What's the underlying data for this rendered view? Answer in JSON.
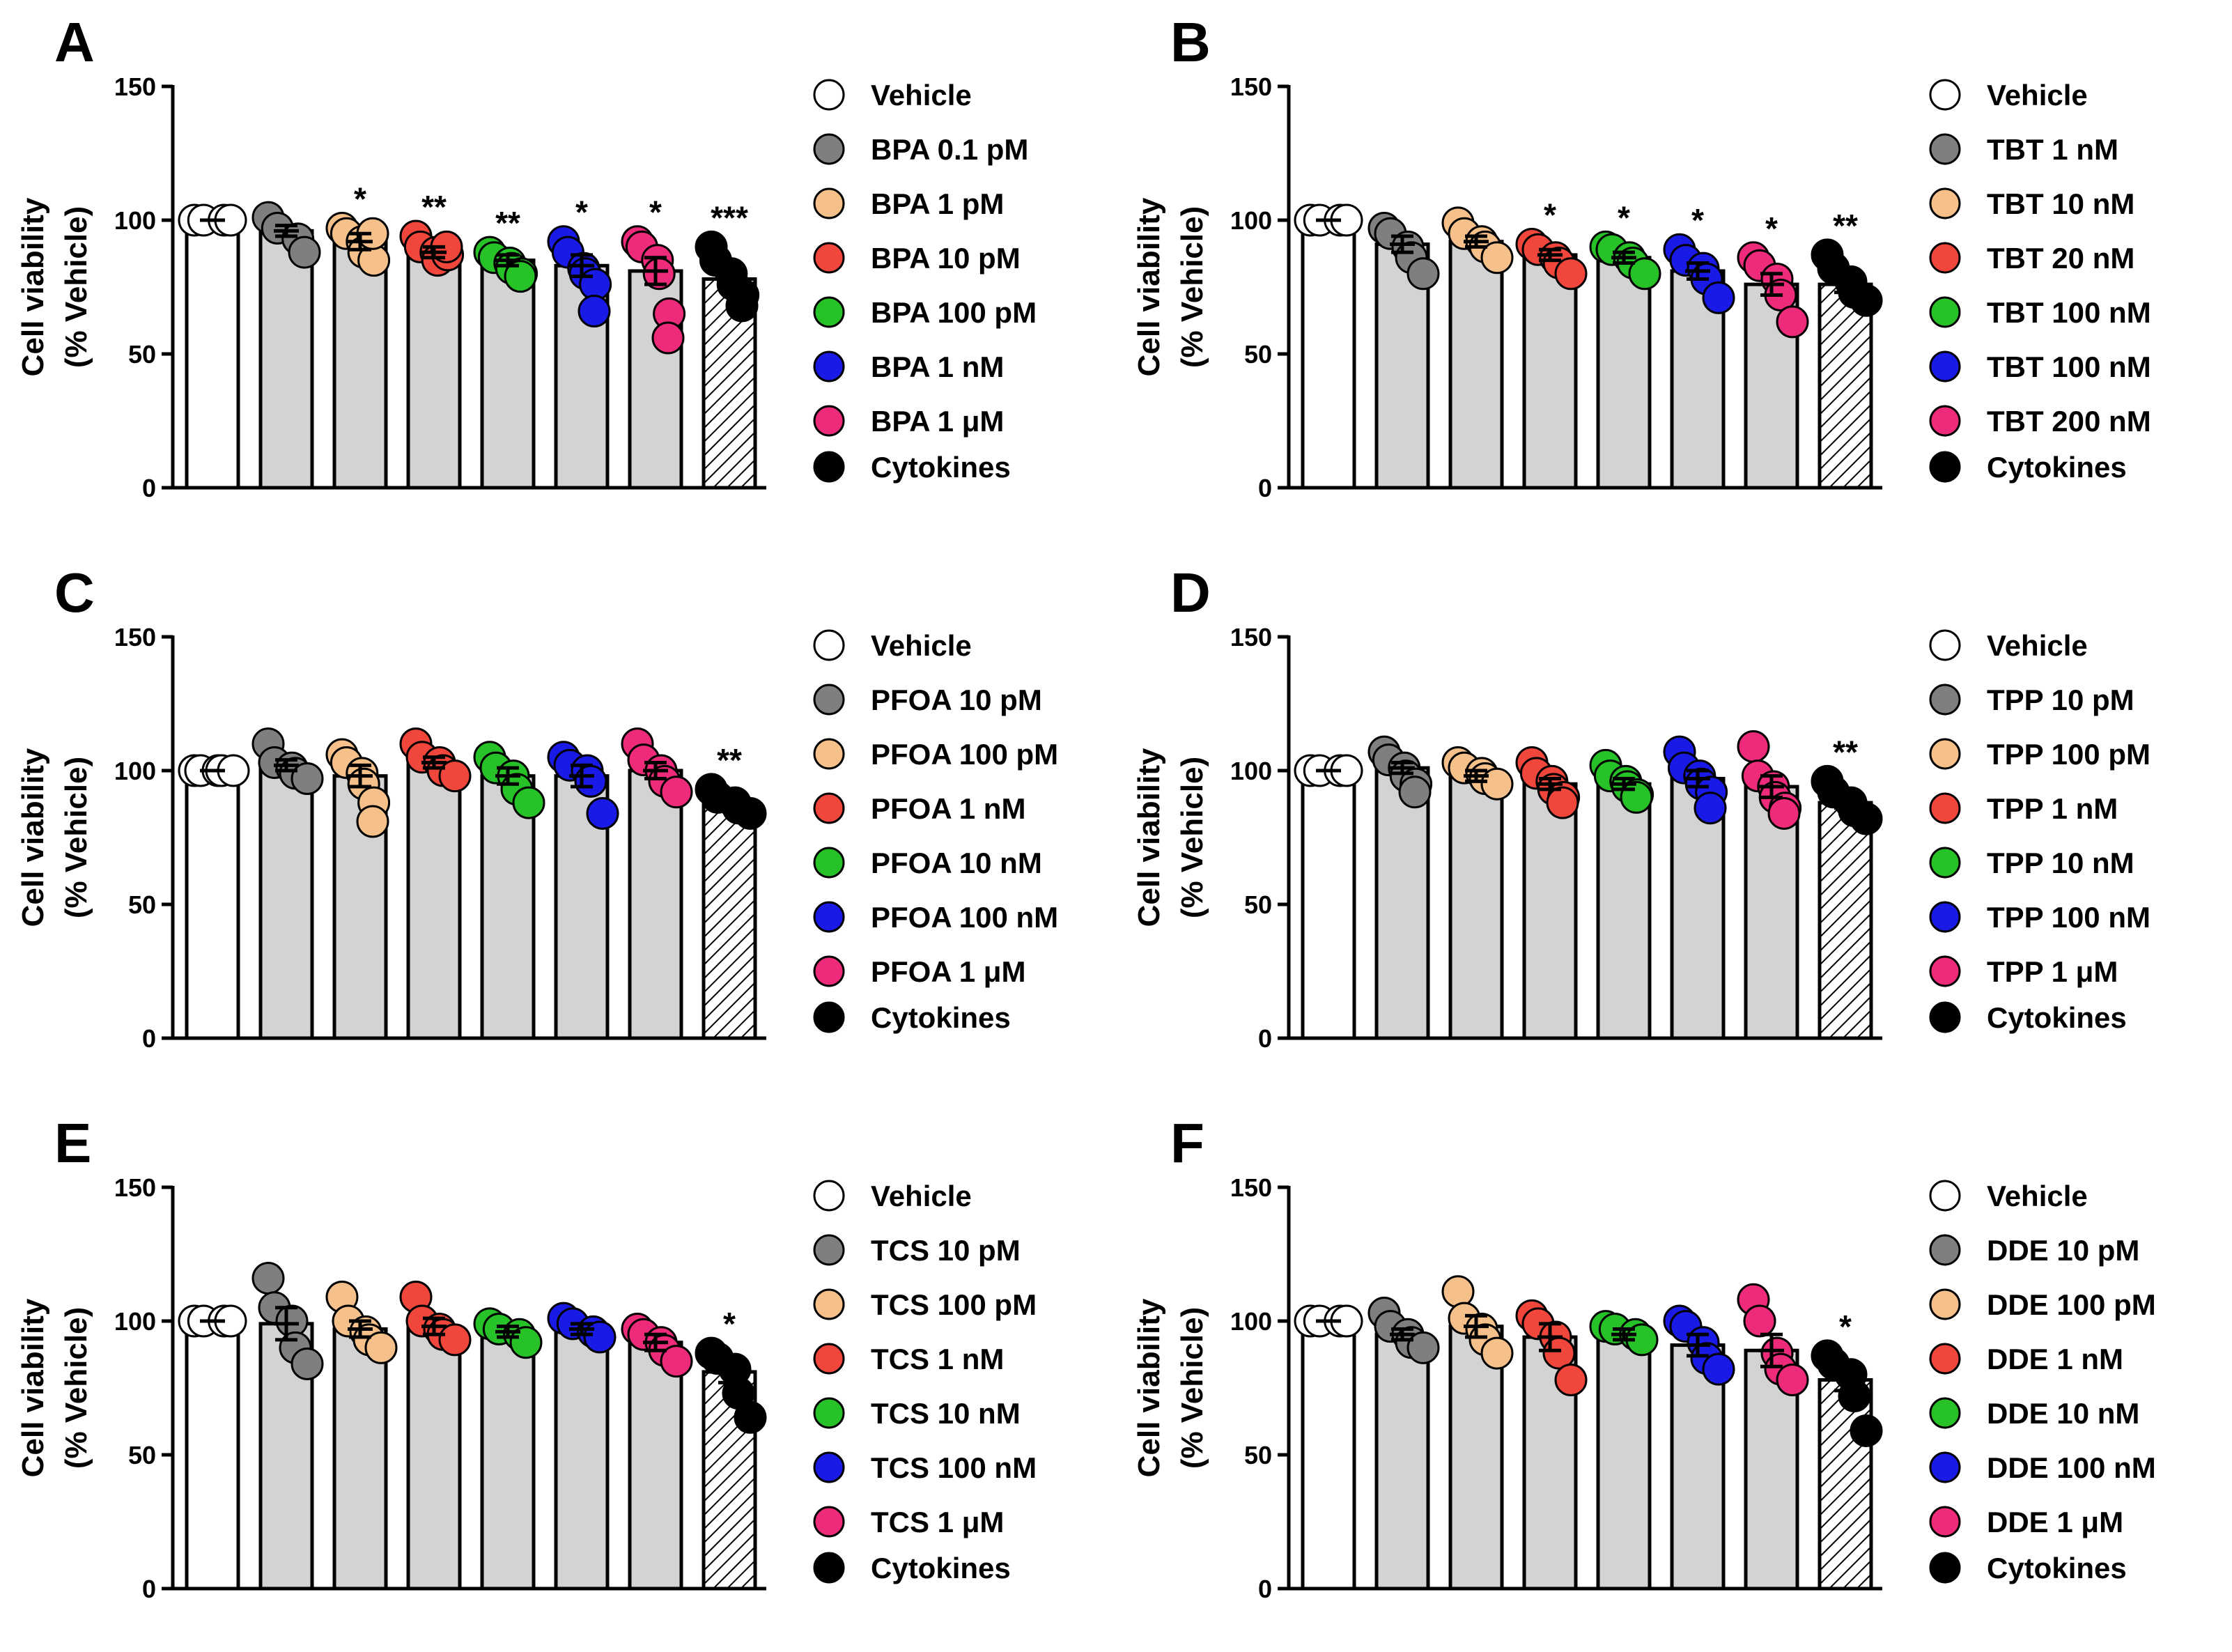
{
  "chart_data": [
    {
      "panel": "A",
      "type": "bar",
      "ylabel_line1": "Cell viability",
      "ylabel_line2": "(% Vehicle)",
      "ylim": [
        0,
        150
      ],
      "yticks": [
        "0",
        "50",
        "100",
        "150"
      ],
      "bars": [
        {
          "label": "Vehicle",
          "color": "#ffffff",
          "fill": "#ffffff",
          "hatched": false,
          "mean": 100,
          "sem": 0,
          "points": [
            100,
            100,
            100,
            100
          ],
          "sig": ""
        },
        {
          "label": "BPA 0.1 pM",
          "color": "#7f7f7f",
          "fill": "#d3d3d3",
          "hatched": false,
          "mean": 96,
          "sem": 2,
          "points": [
            101,
            97,
            93,
            88
          ],
          "sig": ""
        },
        {
          "label": "BPA 1 pM",
          "color": "#f5c08a",
          "fill": "#d3d3d3",
          "hatched": false,
          "mean": 92,
          "sem": 3,
          "points": [
            97,
            95,
            92,
            88,
            85,
            95
          ],
          "sig": "*"
        },
        {
          "label": "BPA 10 pM",
          "color": "#f0463c",
          "fill": "#d3d3d3",
          "hatched": false,
          "mean": 88,
          "sem": 2,
          "points": [
            94,
            90,
            88,
            85,
            87,
            90
          ],
          "sig": "**"
        },
        {
          "label": "BPA 100 pM",
          "color": "#27c227",
          "fill": "#d3d3d3",
          "hatched": false,
          "mean": 85,
          "sem": 2,
          "points": [
            88,
            86,
            84,
            82,
            80,
            79
          ],
          "sig": "**"
        },
        {
          "label": "BPA 1 nM",
          "color": "#1a1ae6",
          "fill": "#d3d3d3",
          "hatched": false,
          "mean": 83,
          "sem": 4,
          "points": [
            92,
            88,
            82,
            80,
            76,
            66
          ],
          "sig": "*"
        },
        {
          "label": "BPA 1 μM",
          "color": "#ee2a7b",
          "fill": "#d3d3d3",
          "hatched": false,
          "mean": 81,
          "sem": 5,
          "points": [
            92,
            90,
            85,
            80,
            65,
            56
          ],
          "sig": "*"
        },
        {
          "label": "Cytokines",
          "color": "#000000",
          "fill": "#ffffff",
          "hatched": true,
          "mean": 78,
          "sem": 2,
          "points": [
            90,
            85,
            80,
            76,
            72,
            68
          ],
          "sig": "***"
        }
      ]
    },
    {
      "panel": "B",
      "type": "bar",
      "ylabel_line1": "Cell viability",
      "ylabel_line2": "(% Vehicle)",
      "ylim": [
        0,
        150
      ],
      "yticks": [
        "0",
        "50",
        "100",
        "150"
      ],
      "bars": [
        {
          "label": "Vehicle",
          "color": "#ffffff",
          "fill": "#ffffff",
          "hatched": false,
          "mean": 100,
          "sem": 0,
          "points": [
            100,
            100,
            100,
            100
          ],
          "sig": ""
        },
        {
          "label": "TBT 1 nM",
          "color": "#7f7f7f",
          "fill": "#d3d3d3",
          "hatched": false,
          "mean": 91,
          "sem": 3,
          "points": [
            97,
            95,
            90,
            86,
            80
          ],
          "sig": ""
        },
        {
          "label": "TBT 10 nM",
          "color": "#f5c08a",
          "fill": "#d3d3d3",
          "hatched": false,
          "mean": 92,
          "sem": 2,
          "points": [
            99,
            95,
            92,
            90,
            86
          ],
          "sig": ""
        },
        {
          "label": "TBT 20 nM",
          "color": "#f0463c",
          "fill": "#d3d3d3",
          "hatched": false,
          "mean": 87,
          "sem": 2,
          "points": [
            91,
            89,
            86,
            84,
            80
          ],
          "sig": "*"
        },
        {
          "label": "TBT 100 nM",
          "color": "#27c227",
          "fill": "#d3d3d3",
          "hatched": false,
          "mean": 86,
          "sem": 2,
          "points": [
            90,
            89,
            86,
            84,
            80
          ],
          "sig": "*"
        },
        {
          "label": "TBT 100 nM",
          "color": "#1a1ae6",
          "fill": "#d3d3d3",
          "hatched": false,
          "mean": 81,
          "sem": 3,
          "points": [
            89,
            85,
            82,
            78,
            71
          ],
          "sig": "*"
        },
        {
          "label": "TBT 200 nM",
          "color": "#ee2a7b",
          "fill": "#d3d3d3",
          "hatched": false,
          "mean": 76,
          "sem": 4,
          "points": [
            86,
            83,
            78,
            72,
            62
          ],
          "sig": "*"
        },
        {
          "label": "Cytokines",
          "color": "#000000",
          "fill": "#ffffff",
          "hatched": true,
          "mean": 76,
          "sem": 3,
          "points": [
            87,
            82,
            77,
            73,
            70
          ],
          "sig": "**"
        }
      ]
    },
    {
      "panel": "C",
      "type": "bar",
      "ylabel_line1": "Cell viability",
      "ylabel_line2": "(% Vehicle)",
      "ylim": [
        0,
        150
      ],
      "yticks": [
        "0",
        "50",
        "100",
        "150"
      ],
      "bars": [
        {
          "label": "Vehicle",
          "color": "#ffffff",
          "fill": "#ffffff",
          "hatched": false,
          "mean": 100,
          "sem": 0,
          "points": [
            100,
            100,
            100,
            100,
            100
          ],
          "sig": ""
        },
        {
          "label": "PFOA 10 pM",
          "color": "#7f7f7f",
          "fill": "#d3d3d3",
          "hatched": false,
          "mean": 102,
          "sem": 2,
          "points": [
            110,
            103,
            101,
            99,
            97
          ],
          "sig": ""
        },
        {
          "label": "PFOA 100 pM",
          "color": "#f5c08a",
          "fill": "#d3d3d3",
          "hatched": false,
          "mean": 98,
          "sem": 4,
          "points": [
            106,
            103,
            99,
            95,
            88,
            81
          ],
          "sig": ""
        },
        {
          "label": "PFOA 1 nM",
          "color": "#f0463c",
          "fill": "#d3d3d3",
          "hatched": false,
          "mean": 103,
          "sem": 2,
          "points": [
            110,
            105,
            103,
            100,
            98
          ],
          "sig": ""
        },
        {
          "label": "PFOA 10 nM",
          "color": "#27c227",
          "fill": "#d3d3d3",
          "hatched": false,
          "mean": 98,
          "sem": 3,
          "points": [
            105,
            101,
            98,
            93,
            88
          ],
          "sig": ""
        },
        {
          "label": "PFOA 100 nM",
          "color": "#1a1ae6",
          "fill": "#d3d3d3",
          "hatched": false,
          "mean": 98,
          "sem": 4,
          "points": [
            105,
            102,
            100,
            96,
            84
          ],
          "sig": ""
        },
        {
          "label": "PFOA 1 μM",
          "color": "#ee2a7b",
          "fill": "#d3d3d3",
          "hatched": false,
          "mean": 100,
          "sem": 3,
          "points": [
            110,
            104,
            100,
            96,
            92
          ],
          "sig": ""
        },
        {
          "label": "Cytokines",
          "color": "#000000",
          "fill": "#ffffff",
          "hatched": true,
          "mean": 88,
          "sem": 1,
          "points": [
            93,
            90,
            88,
            86,
            84
          ],
          "sig": "**"
        }
      ]
    },
    {
      "panel": "D",
      "type": "bar",
      "ylabel_line1": "Cell viability",
      "ylabel_line2": "(% Vehicle)",
      "ylim": [
        0,
        150
      ],
      "yticks": [
        "0",
        "50",
        "100",
        "150"
      ],
      "bars": [
        {
          "label": "Vehicle",
          "color": "#ffffff",
          "fill": "#ffffff",
          "hatched": false,
          "mean": 100,
          "sem": 0,
          "points": [
            100,
            100,
            100,
            100
          ],
          "sig": ""
        },
        {
          "label": "TPP 10 pM",
          "color": "#7f7f7f",
          "fill": "#d3d3d3",
          "hatched": false,
          "mean": 101,
          "sem": 2,
          "points": [
            107,
            104,
            101,
            98,
            95,
            92
          ],
          "sig": ""
        },
        {
          "label": "TPP 100 pM",
          "color": "#f5c08a",
          "fill": "#d3d3d3",
          "hatched": false,
          "mean": 98,
          "sem": 2,
          "points": [
            103,
            101,
            99,
            97,
            95
          ],
          "sig": ""
        },
        {
          "label": "TPP 1 nM",
          "color": "#f0463c",
          "fill": "#d3d3d3",
          "hatched": false,
          "mean": 95,
          "sem": 2,
          "points": [
            103,
            99,
            96,
            93,
            90,
            88
          ],
          "sig": ""
        },
        {
          "label": "TPP 10 nM",
          "color": "#27c227",
          "fill": "#d3d3d3",
          "hatched": false,
          "mean": 95,
          "sem": 2,
          "points": [
            102,
            98,
            96,
            94,
            91,
            90
          ],
          "sig": ""
        },
        {
          "label": "TPP 100 nM",
          "color": "#1a1ae6",
          "fill": "#d3d3d3",
          "hatched": false,
          "mean": 97,
          "sem": 3,
          "points": [
            107,
            101,
            98,
            95,
            92,
            86
          ],
          "sig": ""
        },
        {
          "label": "TPP 1 μM",
          "color": "#ee2a7b",
          "fill": "#d3d3d3",
          "hatched": false,
          "mean": 94,
          "sem": 4,
          "points": [
            109,
            98,
            94,
            90,
            86,
            84
          ],
          "sig": ""
        },
        {
          "label": "Cytokines",
          "color": "#000000",
          "fill": "#ffffff",
          "hatched": true,
          "mean": 88,
          "sem": 2,
          "points": [
            96,
            92,
            88,
            85,
            82
          ],
          "sig": "**"
        }
      ]
    },
    {
      "panel": "E",
      "type": "bar",
      "ylabel_line1": "Cell viability",
      "ylabel_line2": "(% Vehicle)",
      "ylim": [
        0,
        150
      ],
      "yticks": [
        "0",
        "50",
        "100",
        "150"
      ],
      "bars": [
        {
          "label": "Vehicle",
          "color": "#ffffff",
          "fill": "#ffffff",
          "hatched": false,
          "mean": 100,
          "sem": 0,
          "points": [
            100,
            100,
            100,
            100
          ],
          "sig": ""
        },
        {
          "label": "TCS 10 pM",
          "color": "#7f7f7f",
          "fill": "#d3d3d3",
          "hatched": false,
          "mean": 99,
          "sem": 6,
          "points": [
            116,
            105,
            100,
            90,
            84
          ],
          "sig": ""
        },
        {
          "label": "TCS 100 pM",
          "color": "#f5c08a",
          "fill": "#d3d3d3",
          "hatched": false,
          "mean": 97,
          "sem": 3,
          "points": [
            109,
            100,
            96,
            93,
            90
          ],
          "sig": ""
        },
        {
          "label": "TCS 1 nM",
          "color": "#f0463c",
          "fill": "#d3d3d3",
          "hatched": false,
          "mean": 98,
          "sem": 3,
          "points": [
            109,
            100,
            97,
            95,
            93
          ],
          "sig": ""
        },
        {
          "label": "TCS 10 nM",
          "color": "#27c227",
          "fill": "#d3d3d3",
          "hatched": false,
          "mean": 96,
          "sem": 2,
          "points": [
            99,
            97,
            95,
            92
          ],
          "sig": ""
        },
        {
          "label": "TCS 100 nM",
          "color": "#1a1ae6",
          "fill": "#d3d3d3",
          "hatched": false,
          "mean": 97,
          "sem": 2,
          "points": [
            101,
            99,
            96,
            94
          ],
          "sig": ""
        },
        {
          "label": "TCS 1 μM",
          "color": "#ee2a7b",
          "fill": "#d3d3d3",
          "hatched": false,
          "mean": 92,
          "sem": 3,
          "points": [
            97,
            95,
            92,
            89,
            85
          ],
          "sig": ""
        },
        {
          "label": "Cytokines",
          "color": "#000000",
          "fill": "#ffffff",
          "hatched": true,
          "mean": 81,
          "sem": 4,
          "points": [
            88,
            86,
            82,
            73,
            64
          ],
          "sig": "*"
        }
      ]
    },
    {
      "panel": "F",
      "type": "bar",
      "ylabel_line1": "Cell viability",
      "ylabel_line2": "(% Vehicle)",
      "ylim": [
        0,
        150
      ],
      "yticks": [
        "0",
        "50",
        "100",
        "150"
      ],
      "bars": [
        {
          "label": "Vehicle",
          "color": "#ffffff",
          "fill": "#ffffff",
          "hatched": false,
          "mean": 100,
          "sem": 0,
          "points": [
            100,
            100,
            100,
            100
          ],
          "sig": ""
        },
        {
          "label": "DDE 10 pM",
          "color": "#7f7f7f",
          "fill": "#d3d3d3",
          "hatched": false,
          "mean": 95,
          "sem": 2,
          "points": [
            103,
            98,
            95,
            92,
            90
          ],
          "sig": ""
        },
        {
          "label": "DDE 100 pM",
          "color": "#f5c08a",
          "fill": "#d3d3d3",
          "hatched": false,
          "mean": 98,
          "sem": 4,
          "points": [
            111,
            101,
            97,
            93,
            88
          ],
          "sig": ""
        },
        {
          "label": "DDE 1 nM",
          "color": "#f0463c",
          "fill": "#d3d3d3",
          "hatched": false,
          "mean": 94,
          "sem": 5,
          "points": [
            102,
            99,
            94,
            88,
            78
          ],
          "sig": ""
        },
        {
          "label": "DDE 10 nM",
          "color": "#27c227",
          "fill": "#d3d3d3",
          "hatched": false,
          "mean": 95,
          "sem": 2,
          "points": [
            98,
            97,
            95,
            93
          ],
          "sig": ""
        },
        {
          "label": "DDE 100 nM",
          "color": "#1a1ae6",
          "fill": "#d3d3d3",
          "hatched": false,
          "mean": 91,
          "sem": 4,
          "points": [
            100,
            98,
            92,
            86,
            82
          ],
          "sig": ""
        },
        {
          "label": "DDE 1 μM",
          "color": "#ee2a7b",
          "fill": "#d3d3d3",
          "hatched": false,
          "mean": 89,
          "sem": 6,
          "points": [
            108,
            100,
            88,
            82,
            78
          ],
          "sig": ""
        },
        {
          "label": "Cytokines",
          "color": "#000000",
          "fill": "#ffffff",
          "hatched": true,
          "mean": 78,
          "sem": 4,
          "points": [
            87,
            84,
            80,
            72,
            59
          ],
          "sig": "*"
        }
      ]
    }
  ]
}
